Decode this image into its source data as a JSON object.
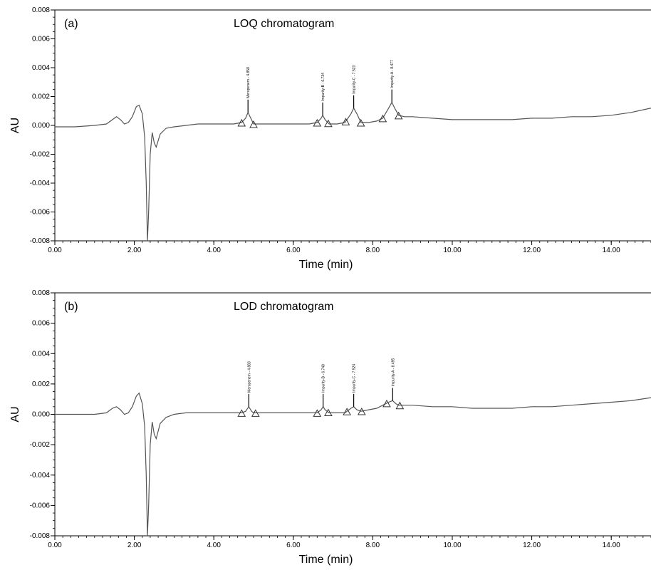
{
  "chart_data": [
    {
      "type": "line",
      "panel_label": "(a)",
      "title": "LOQ chromatogram",
      "xlabel": "Time (min)",
      "ylabel": "AU",
      "xlim": [
        0,
        15
      ],
      "ylim": [
        -0.008,
        0.008
      ],
      "x_ticks": [
        0,
        2,
        4,
        6,
        8,
        10,
        12,
        14
      ],
      "x_tick_labels": [
        "0.00",
        "2.00",
        "4.00",
        "6.00",
        "8.00",
        "10.00",
        "12.00",
        "14.00"
      ],
      "y_ticks": [
        0.008,
        0.006,
        0.004,
        0.002,
        0,
        -0.002,
        -0.004,
        -0.006,
        -0.008
      ],
      "y_tick_labels": [
        "0.008",
        "0.006",
        "0.004",
        "0.002",
        "0.000",
        "-0.002",
        "-0.004",
        "-0.006",
        "-0.008"
      ],
      "grid": false,
      "series": [
        {
          "x": [
            0,
            0.5,
            1.0,
            1.3,
            1.45,
            1.55,
            1.65,
            1.75,
            1.85,
            1.95,
            2.05,
            2.12,
            2.2,
            2.26,
            2.3,
            2.33,
            2.36,
            2.4,
            2.45,
            2.5,
            2.55,
            2.65,
            2.8,
            3.0,
            3.3,
            3.6,
            4.0,
            4.5,
            4.7,
            4.8,
            4.86,
            4.93,
            5.0,
            5.2,
            5.6,
            6.0,
            6.4,
            6.6,
            6.7,
            6.74,
            6.8,
            6.9,
            7.1,
            7.3,
            7.45,
            7.52,
            7.6,
            7.7,
            7.9,
            8.1,
            8.25,
            8.4,
            8.48,
            8.55,
            8.65,
            8.8,
            9.0,
            9.5,
            10.0,
            10.5,
            11.0,
            11.5,
            12.0,
            12.5,
            13.0,
            13.5,
            14.0,
            14.5,
            15.0
          ],
          "y": [
            -0.0001,
            -0.0001,
            0.0,
            0.0001,
            0.0004,
            0.0006,
            0.0004,
            0.0001,
            0.0002,
            0.0006,
            0.0013,
            0.0014,
            0.0008,
            -0.0008,
            -0.004,
            -0.0085,
            -0.006,
            -0.002,
            -0.0005,
            -0.0012,
            -0.0015,
            -0.0006,
            -0.0002,
            -0.0001,
            0.0,
            0.0001,
            0.0001,
            0.0001,
            0.0002,
            0.0005,
            0.0009,
            0.0005,
            0.0001,
            0.0001,
            0.0001,
            0.0001,
            0.0001,
            0.0002,
            0.0005,
            0.0007,
            0.0004,
            0.0001,
            0.0001,
            0.0002,
            0.0008,
            0.0012,
            0.0008,
            0.0002,
            0.0002,
            0.0003,
            0.0005,
            0.0012,
            0.0016,
            0.0012,
            0.0007,
            0.0006,
            0.0006,
            0.0005,
            0.0004,
            0.0004,
            0.0004,
            0.0004,
            0.0005,
            0.0005,
            0.0006,
            0.0006,
            0.0007,
            0.0009,
            0.0012
          ]
        }
      ],
      "peaks": [
        {
          "time": 4.86,
          "label": "Meropenem - 4.858",
          "start": 4.7,
          "end": 5.0
        },
        {
          "time": 6.74,
          "label": "Impurity-B - 6.734",
          "start": 6.6,
          "end": 6.88
        },
        {
          "time": 7.52,
          "label": "Impurity-C - 7.523",
          "start": 7.32,
          "end": 7.7
        },
        {
          "time": 8.48,
          "label": "Impurity-A - 8.477",
          "start": 8.25,
          "end": 8.65
        }
      ]
    },
    {
      "type": "line",
      "panel_label": "(b)",
      "title": "LOD chromatogram",
      "xlabel": "Time (min)",
      "ylabel": "AU",
      "xlim": [
        0,
        15
      ],
      "ylim": [
        -0.008,
        0.008
      ],
      "x_ticks": [
        0,
        2,
        4,
        6,
        8,
        10,
        12,
        14
      ],
      "x_tick_labels": [
        "0.00",
        "2.00",
        "4.00",
        "6.00",
        "8.00",
        "10.00",
        "12.00",
        "14.00"
      ],
      "y_ticks": [
        0.008,
        0.006,
        0.004,
        0.002,
        0,
        -0.002,
        -0.004,
        -0.006,
        -0.008
      ],
      "y_tick_labels": [
        "0.008",
        "0.006",
        "0.004",
        "0.002",
        "0.000",
        "-0.002",
        "-0.004",
        "-0.006",
        "-0.008"
      ],
      "grid": false,
      "series": [
        {
          "x": [
            0,
            0.5,
            1.0,
            1.3,
            1.45,
            1.55,
            1.65,
            1.75,
            1.85,
            1.95,
            2.05,
            2.12,
            2.2,
            2.26,
            2.3,
            2.33,
            2.36,
            2.4,
            2.45,
            2.5,
            2.55,
            2.65,
            2.8,
            3.0,
            3.3,
            3.6,
            4.0,
            4.5,
            4.7,
            4.8,
            4.88,
            4.95,
            5.0,
            5.2,
            5.6,
            6.0,
            6.4,
            6.6,
            6.7,
            6.75,
            6.8,
            6.9,
            7.1,
            7.3,
            7.45,
            7.52,
            7.6,
            7.7,
            7.9,
            8.1,
            8.25,
            8.4,
            8.5,
            8.58,
            8.65,
            8.8,
            9.0,
            9.5,
            10.0,
            10.5,
            11.0,
            11.5,
            12.0,
            12.5,
            13.0,
            13.5,
            14.0,
            14.5,
            15.0
          ],
          "y": [
            0.0,
            0.0,
            0.0,
            0.0001,
            0.0004,
            0.0005,
            0.0003,
            0.0,
            0.0001,
            0.0005,
            0.0012,
            0.0014,
            0.0007,
            -0.0008,
            -0.004,
            -0.0085,
            -0.006,
            -0.002,
            -0.0005,
            -0.0013,
            -0.0016,
            -0.0006,
            -0.0002,
            0.0,
            0.0001,
            0.0001,
            0.0001,
            0.0001,
            0.0001,
            0.0002,
            0.0005,
            0.0002,
            0.0001,
            0.0001,
            0.0001,
            0.0001,
            0.0001,
            0.0001,
            0.0003,
            0.0005,
            0.0003,
            0.0001,
            0.0001,
            0.0001,
            0.0004,
            0.0005,
            0.0003,
            0.0002,
            0.0003,
            0.0004,
            0.0006,
            0.0008,
            0.0009,
            0.0007,
            0.0006,
            0.0006,
            0.0006,
            0.0005,
            0.0005,
            0.0004,
            0.0004,
            0.0004,
            0.0005,
            0.0005,
            0.0006,
            0.0007,
            0.0008,
            0.0009,
            0.0011
          ]
        }
      ],
      "peaks": [
        {
          "time": 4.88,
          "label": "Meropenem - 4.883",
          "start": 4.7,
          "end": 5.05
        },
        {
          "time": 6.75,
          "label": "Impurity-B - 6.748",
          "start": 6.6,
          "end": 6.88
        },
        {
          "time": 7.52,
          "label": "Impurity-C - 7.524",
          "start": 7.35,
          "end": 7.72
        },
        {
          "time": 8.5,
          "label": "Impurity-A - 8.495",
          "start": 8.35,
          "end": 8.68
        }
      ]
    }
  ],
  "colors": {
    "trace": "#555555",
    "axis": "#000000",
    "marker": "#333333"
  }
}
